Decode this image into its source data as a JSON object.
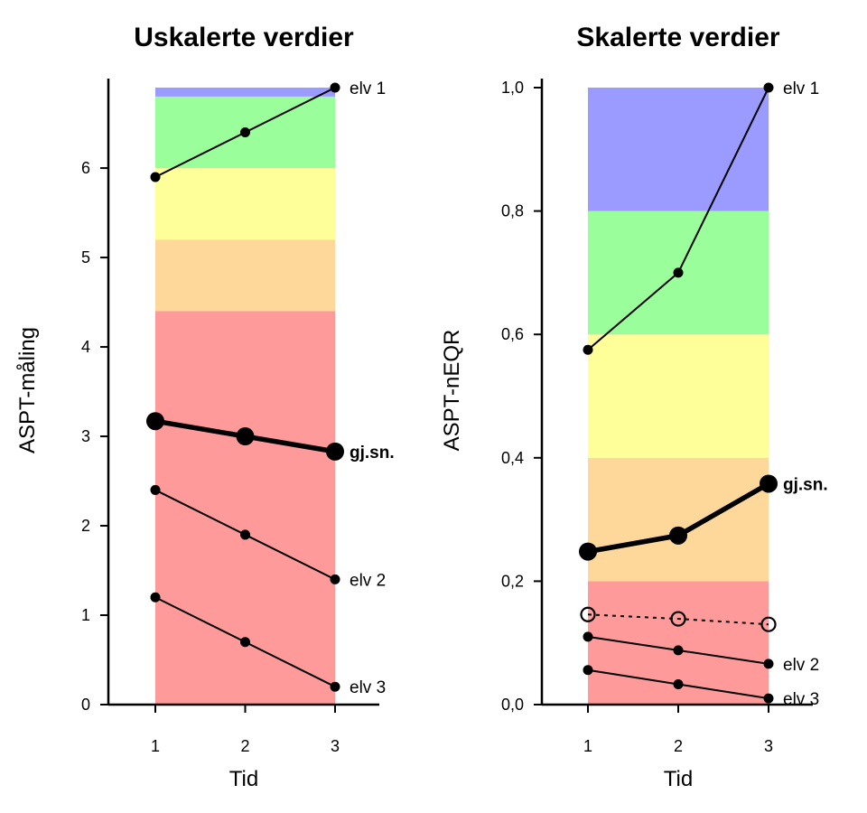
{
  "chart_data": [
    {
      "type": "line",
      "title": "Uskalerte verdier",
      "xlabel": "Tid",
      "ylabel": "ASPT-måling",
      "x": [
        1,
        2,
        3
      ],
      "xlim": [
        0.5,
        3.5
      ],
      "ylim": [
        0,
        6.9
      ],
      "yticks": [
        0,
        1,
        2,
        3,
        4,
        5,
        6
      ],
      "ytick_labels": [
        "0",
        "1",
        "2",
        "3",
        "4",
        "5",
        "6"
      ],
      "xtick_labels": [
        "1",
        "2",
        "3"
      ],
      "bands": [
        {
          "from": 0,
          "to": 4.4,
          "color": "#ff9a9a"
        },
        {
          "from": 4.4,
          "to": 5.2,
          "color": "#fdd89a"
        },
        {
          "from": 5.2,
          "to": 6.0,
          "color": "#ffff9a"
        },
        {
          "from": 6.0,
          "to": 6.8,
          "color": "#9aff9a"
        },
        {
          "from": 6.8,
          "to": 6.9,
          "color": "#9a9aff"
        }
      ],
      "series": [
        {
          "name": "elv 1",
          "values": [
            5.9,
            6.4,
            6.9
          ],
          "style": "thin"
        },
        {
          "name": "gj.sn.",
          "values": [
            3.17,
            3.0,
            2.83
          ],
          "style": "bold"
        },
        {
          "name": "elv 2",
          "values": [
            2.4,
            1.9,
            1.4
          ],
          "style": "thin"
        },
        {
          "name": "elv 3",
          "values": [
            1.2,
            0.7,
            0.2
          ],
          "style": "thin"
        }
      ]
    },
    {
      "type": "line",
      "title": "Skalerte verdier",
      "xlabel": "Tid",
      "ylabel": "ASPT-nEQR",
      "x": [
        1,
        2,
        3
      ],
      "xlim": [
        0.5,
        3.5
      ],
      "ylim": [
        0,
        1.0
      ],
      "yticks": [
        0,
        0.2,
        0.4,
        0.6,
        0.8,
        1.0
      ],
      "ytick_labels": [
        "0,0",
        "0,2",
        "0,4",
        "0,6",
        "0,8",
        "1,0"
      ],
      "xtick_labels": [
        "1",
        "2",
        "3"
      ],
      "bands": [
        {
          "from": 0,
          "to": 0.2,
          "color": "#ff9a9a"
        },
        {
          "from": 0.2,
          "to": 0.4,
          "color": "#fdd89a"
        },
        {
          "from": 0.4,
          "to": 0.6,
          "color": "#ffff9a"
        },
        {
          "from": 0.6,
          "to": 0.8,
          "color": "#9aff9a"
        },
        {
          "from": 0.8,
          "to": 1.0,
          "color": "#9a9aff"
        }
      ],
      "series": [
        {
          "name": "elv 1",
          "values": [
            0.575,
            0.7,
            1.0
          ],
          "style": "thin"
        },
        {
          "name": "gj.sn.",
          "values": [
            0.248,
            0.274,
            0.358
          ],
          "style": "bold"
        },
        {
          "name": "",
          "values": [
            0.146,
            0.139,
            0.13
          ],
          "style": "dotted"
        },
        {
          "name": "elv 2",
          "values": [
            0.11,
            0.088,
            0.066
          ],
          "style": "thin"
        },
        {
          "name": "elv 3",
          "values": [
            0.056,
            0.033,
            0.01
          ],
          "style": "thin"
        }
      ]
    }
  ]
}
